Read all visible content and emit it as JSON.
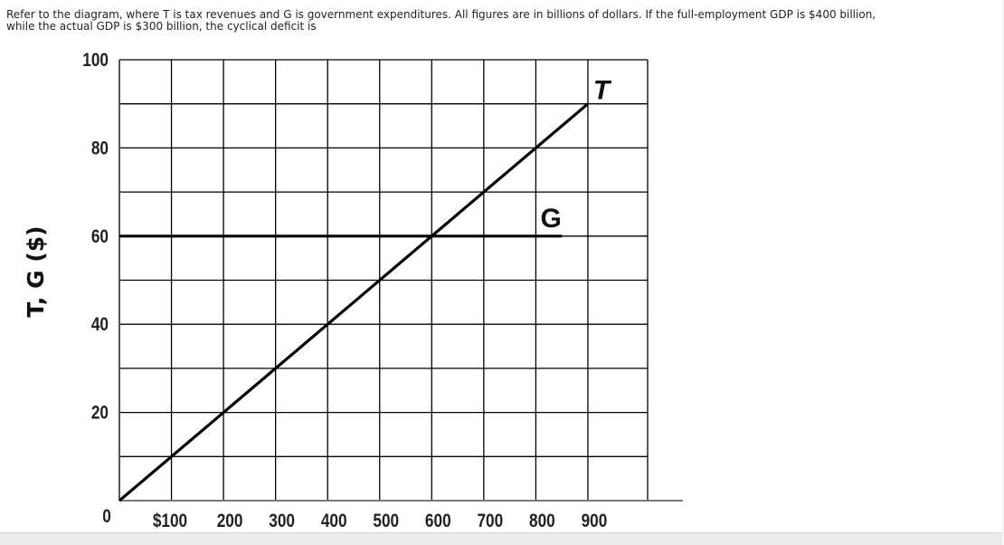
{
  "question": {
    "line1": "Refer to the diagram, where T is tax revenues and G is government expenditures. All figures are in billions of dollars. If the full-employment GDP is $400 billion,",
    "line2": "while the actual GDP is $300 billion, the cyclical deficit is"
  },
  "chart_data": {
    "type": "line",
    "title": "",
    "xlabel": "",
    "ylabel": "T, G ($)",
    "xlim": [
      0,
      1000
    ],
    "ylim": [
      0,
      100
    ],
    "x_ticks": [
      0,
      100,
      200,
      300,
      400,
      500,
      600,
      700,
      800,
      900
    ],
    "x_tick_labels": [
      "0",
      "$100",
      "200",
      "300",
      "400",
      "500",
      "600",
      "700",
      "800",
      "900"
    ],
    "y_ticks": [
      20,
      40,
      60,
      80,
      100
    ],
    "y_tick_labels": [
      "20",
      "40",
      "60",
      "80",
      "100"
    ],
    "grid": true,
    "series": [
      {
        "name": "T",
        "x": [
          0,
          900
        ],
        "y": [
          0,
          90
        ],
        "color": "#000000"
      },
      {
        "name": "G",
        "x": [
          0,
          850
        ],
        "y": [
          60,
          60
        ],
        "color": "#000000"
      }
    ]
  }
}
